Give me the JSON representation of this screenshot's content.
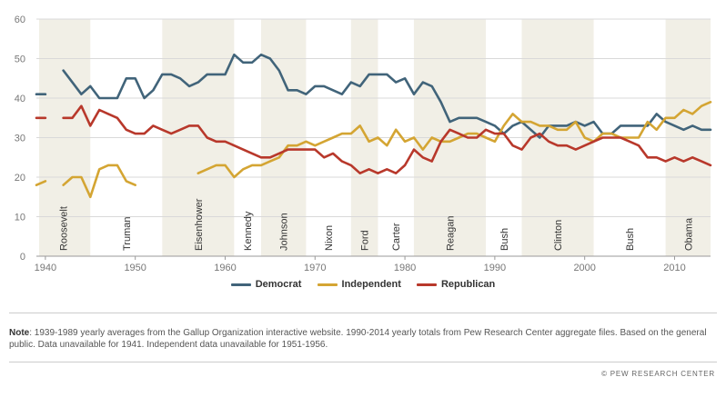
{
  "chart_data": {
    "type": "line",
    "title": "",
    "xlabel": "",
    "ylabel": "",
    "xlim": [
      1939,
      2014
    ],
    "ylim": [
      0,
      60
    ],
    "y_ticks": [
      "0",
      "10",
      "20",
      "30",
      "40",
      "50",
      "60"
    ],
    "x_ticks": [
      "1940",
      "1950",
      "1960",
      "1970",
      "1980",
      "1990",
      "2000",
      "2010"
    ],
    "grid": true,
    "legend_position": "bottom",
    "presidents": [
      {
        "name": "Roosevelt",
        "start": 1939,
        "end": 1945,
        "shaded": true
      },
      {
        "name": "Truman",
        "start": 1945,
        "end": 1953,
        "shaded": false
      },
      {
        "name": "Eisenhower",
        "start": 1953,
        "end": 1961,
        "shaded": true
      },
      {
        "name": "Kennedy",
        "start": 1961,
        "end": 1964,
        "shaded": false
      },
      {
        "name": "Johnson",
        "start": 1964,
        "end": 1969,
        "shaded": true
      },
      {
        "name": "Nixon",
        "start": 1969,
        "end": 1974,
        "shaded": false
      },
      {
        "name": "Ford",
        "start": 1974,
        "end": 1977,
        "shaded": true
      },
      {
        "name": "Carter",
        "start": 1977,
        "end": 1981,
        "shaded": false
      },
      {
        "name": "Reagan",
        "start": 1981,
        "end": 1989,
        "shaded": true
      },
      {
        "name": "Bush",
        "start": 1989,
        "end": 1993,
        "shaded": false
      },
      {
        "name": "Clinton",
        "start": 1993,
        "end": 2001,
        "shaded": true
      },
      {
        "name": "Bush",
        "start": 2001,
        "end": 2009,
        "shaded": false
      },
      {
        "name": "Obama",
        "start": 2009,
        "end": 2014,
        "shaded": true
      }
    ],
    "series": [
      {
        "name": "Democrat",
        "color": "#41647a",
        "points": [
          [
            1939,
            41
          ],
          [
            1940,
            41
          ],
          null,
          [
            1942,
            47
          ],
          [
            1943,
            44
          ],
          [
            1944,
            41
          ],
          [
            1945,
            43
          ],
          [
            1946,
            40
          ],
          [
            1947,
            40
          ],
          [
            1948,
            40
          ],
          [
            1949,
            45
          ],
          [
            1950,
            45
          ],
          [
            1951,
            40
          ],
          [
            1952,
            42
          ],
          [
            1953,
            46
          ],
          [
            1954,
            46
          ],
          [
            1955,
            45
          ],
          [
            1956,
            43
          ],
          [
            1957,
            44
          ],
          [
            1958,
            46
          ],
          [
            1959,
            46
          ],
          [
            1960,
            46
          ],
          [
            1961,
            51
          ],
          [
            1962,
            49
          ],
          [
            1963,
            49
          ],
          [
            1964,
            51
          ],
          [
            1965,
            50
          ],
          [
            1966,
            47
          ],
          [
            1967,
            42
          ],
          [
            1968,
            42
          ],
          [
            1969,
            41
          ],
          [
            1970,
            43
          ],
          [
            1971,
            43
          ],
          [
            1972,
            42
          ],
          [
            1973,
            41
          ],
          [
            1974,
            44
          ],
          [
            1975,
            43
          ],
          [
            1976,
            46
          ],
          [
            1977,
            46
          ],
          [
            1978,
            46
          ],
          [
            1979,
            44
          ],
          [
            1980,
            45
          ],
          [
            1981,
            41
          ],
          [
            1982,
            44
          ],
          [
            1983,
            43
          ],
          [
            1984,
            39
          ],
          [
            1985,
            34
          ],
          [
            1986,
            35
          ],
          [
            1987,
            35
          ],
          [
            1988,
            35
          ],
          [
            1989,
            34
          ],
          [
            1990,
            33
          ],
          [
            1991,
            31
          ],
          [
            1992,
            33
          ],
          [
            1993,
            34
          ],
          [
            1994,
            32
          ],
          [
            1995,
            30
          ],
          [
            1996,
            33
          ],
          [
            1997,
            33
          ],
          [
            1998,
            33
          ],
          [
            1999,
            34
          ],
          [
            2000,
            33
          ],
          [
            2001,
            34
          ],
          [
            2002,
            31
          ],
          [
            2003,
            31
          ],
          [
            2004,
            33
          ],
          [
            2005,
            33
          ],
          [
            2006,
            33
          ],
          [
            2007,
            33
          ],
          [
            2008,
            36
          ],
          [
            2009,
            34
          ],
          [
            2010,
            33
          ],
          [
            2011,
            32
          ],
          [
            2012,
            33
          ],
          [
            2013,
            32
          ],
          [
            2014,
            32
          ]
        ]
      },
      {
        "name": "Independent",
        "color": "#d4a533",
        "points": [
          [
            1939,
            18
          ],
          [
            1940,
            19
          ],
          null,
          [
            1942,
            18
          ],
          [
            1943,
            20
          ],
          [
            1944,
            20
          ],
          [
            1945,
            15
          ],
          [
            1946,
            22
          ],
          [
            1947,
            23
          ],
          [
            1948,
            23
          ],
          [
            1949,
            19
          ],
          [
            1950,
            18
          ],
          null,
          [
            1957,
            21
          ],
          [
            1958,
            22
          ],
          [
            1959,
            23
          ],
          [
            1960,
            23
          ],
          [
            1961,
            20
          ],
          [
            1962,
            22
          ],
          [
            1963,
            23
          ],
          [
            1964,
            23
          ],
          [
            1965,
            24
          ],
          [
            1966,
            25
          ],
          [
            1967,
            28
          ],
          [
            1968,
            28
          ],
          [
            1969,
            29
          ],
          [
            1970,
            28
          ],
          [
            1971,
            29
          ],
          [
            1972,
            30
          ],
          [
            1973,
            31
          ],
          [
            1974,
            31
          ],
          [
            1975,
            33
          ],
          [
            1976,
            29
          ],
          [
            1977,
            30
          ],
          [
            1978,
            28
          ],
          [
            1979,
            32
          ],
          [
            1980,
            29
          ],
          [
            1981,
            30
          ],
          [
            1982,
            27
          ],
          [
            1983,
            30
          ],
          [
            1984,
            29
          ],
          [
            1985,
            29
          ],
          [
            1986,
            30
          ],
          [
            1987,
            31
          ],
          [
            1988,
            31
          ],
          [
            1989,
            30
          ],
          [
            1990,
            29
          ],
          [
            1991,
            33
          ],
          [
            1992,
            36
          ],
          [
            1993,
            34
          ],
          [
            1994,
            34
          ],
          [
            1995,
            33
          ],
          [
            1996,
            33
          ],
          [
            1997,
            32
          ],
          [
            1998,
            32
          ],
          [
            1999,
            34
          ],
          [
            2000,
            30
          ],
          [
            2001,
            29
          ],
          [
            2002,
            31
          ],
          [
            2003,
            31
          ],
          [
            2004,
            30
          ],
          [
            2005,
            30
          ],
          [
            2006,
            30
          ],
          [
            2007,
            34
          ],
          [
            2008,
            32
          ],
          [
            2009,
            35
          ],
          [
            2010,
            35
          ],
          [
            2011,
            37
          ],
          [
            2012,
            36
          ],
          [
            2013,
            38
          ],
          [
            2014,
            39
          ]
        ]
      },
      {
        "name": "Republican",
        "color": "#b8382b",
        "points": [
          [
            1939,
            35
          ],
          [
            1940,
            35
          ],
          null,
          [
            1942,
            35
          ],
          [
            1943,
            35
          ],
          [
            1944,
            38
          ],
          [
            1945,
            33
          ],
          [
            1946,
            37
          ],
          [
            1947,
            36
          ],
          [
            1948,
            35
          ],
          [
            1949,
            32
          ],
          [
            1950,
            31
          ],
          [
            1951,
            31
          ],
          [
            1952,
            33
          ],
          [
            1953,
            32
          ],
          [
            1954,
            31
          ],
          [
            1955,
            32
          ],
          [
            1956,
            33
          ],
          [
            1957,
            33
          ],
          [
            1958,
            30
          ],
          [
            1959,
            29
          ],
          [
            1960,
            29
          ],
          [
            1961,
            28
          ],
          [
            1962,
            27
          ],
          [
            1963,
            26
          ],
          [
            1964,
            25
          ],
          [
            1965,
            25
          ],
          [
            1966,
            26
          ],
          [
            1967,
            27
          ],
          [
            1968,
            27
          ],
          [
            1969,
            27
          ],
          [
            1970,
            27
          ],
          [
            1971,
            25
          ],
          [
            1972,
            26
          ],
          [
            1973,
            24
          ],
          [
            1974,
            23
          ],
          [
            1975,
            21
          ],
          [
            1976,
            22
          ],
          [
            1977,
            21
          ],
          [
            1978,
            22
          ],
          [
            1979,
            21
          ],
          [
            1980,
            23
          ],
          [
            1981,
            27
          ],
          [
            1982,
            25
          ],
          [
            1983,
            24
          ],
          [
            1984,
            29
          ],
          [
            1985,
            32
          ],
          [
            1986,
            31
          ],
          [
            1987,
            30
          ],
          [
            1988,
            30
          ],
          [
            1989,
            32
          ],
          [
            1990,
            31
          ],
          [
            1991,
            31
          ],
          [
            1992,
            28
          ],
          [
            1993,
            27
          ],
          [
            1994,
            30
          ],
          [
            1995,
            31
          ],
          [
            1996,
            29
          ],
          [
            1997,
            28
          ],
          [
            1998,
            28
          ],
          [
            1999,
            27
          ],
          [
            2000,
            28
          ],
          [
            2001,
            29
          ],
          [
            2002,
            30
          ],
          [
            2003,
            30
          ],
          [
            2004,
            30
          ],
          [
            2005,
            29
          ],
          [
            2006,
            28
          ],
          [
            2007,
            25
          ],
          [
            2008,
            25
          ],
          [
            2009,
            24
          ],
          [
            2010,
            25
          ],
          [
            2011,
            24
          ],
          [
            2012,
            25
          ],
          [
            2013,
            24
          ],
          [
            2014,
            23
          ]
        ]
      }
    ]
  },
  "legend": {
    "democrat": "Democrat",
    "independent": "Independent",
    "republican": "Republican"
  },
  "note": {
    "label": "Note",
    "text": ": 1939-1989 yearly averages from the Gallup Organization interactive website. 1990-2014 yearly totals from Pew Research Center aggregate files. Based on the general public. Data unavailable for 1941. Independent data unavailable for 1951-1956."
  },
  "credit": "© PEW RESEARCH CENTER",
  "colors": {
    "shade": "#f1efe6",
    "grid": "#d9d9d9",
    "democrat": "#41647a",
    "independent": "#d4a533",
    "republican": "#b8382b"
  }
}
